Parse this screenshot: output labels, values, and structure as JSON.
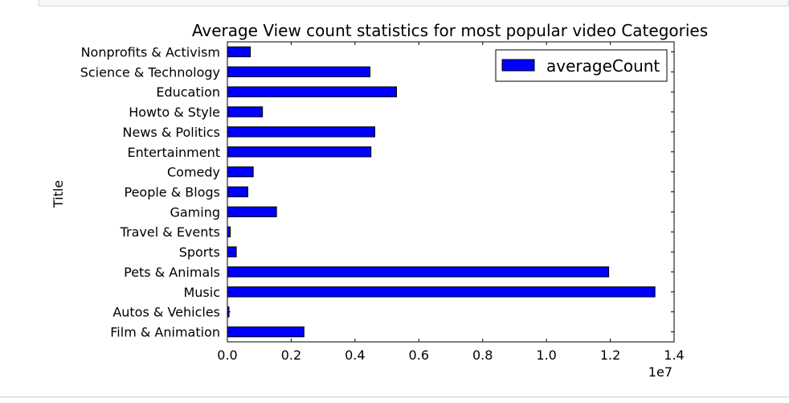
{
  "chart_data": {
    "type": "bar",
    "orientation": "horizontal",
    "title": "Average View count statistics for most popular video Categories",
    "ylabel": "Title",
    "xlabel": "",
    "x_offset_label": "1e7",
    "xlim": [
      0,
      14000000
    ],
    "x_ticks": [
      0,
      2000000,
      4000000,
      6000000,
      8000000,
      10000000,
      12000000,
      14000000
    ],
    "x_tick_labels": [
      "0.0",
      "0.2",
      "0.4",
      "0.6",
      "0.8",
      "1.0",
      "1.2",
      "1.4"
    ],
    "categories": [
      "Film & Animation",
      "Autos & Vehicles",
      "Music",
      "Pets & Animals",
      "Sports",
      "Travel & Events",
      "Gaming",
      "People & Blogs",
      "Comedy",
      "Entertainment",
      "News & Politics",
      "Howto & Style",
      "Education",
      "Science & Technology",
      "Nonprofits & Activism"
    ],
    "series": [
      {
        "name": "averageCount",
        "color": "#0000ff",
        "values": [
          2400000,
          50000,
          13400000,
          11950000,
          280000,
          90000,
          1540000,
          640000,
          810000,
          4500000,
          4620000,
          1100000,
          5300000,
          4470000,
          720000
        ]
      }
    ],
    "legend": {
      "position": "top-right",
      "entries": [
        "averageCount"
      ]
    },
    "grid": false
  }
}
